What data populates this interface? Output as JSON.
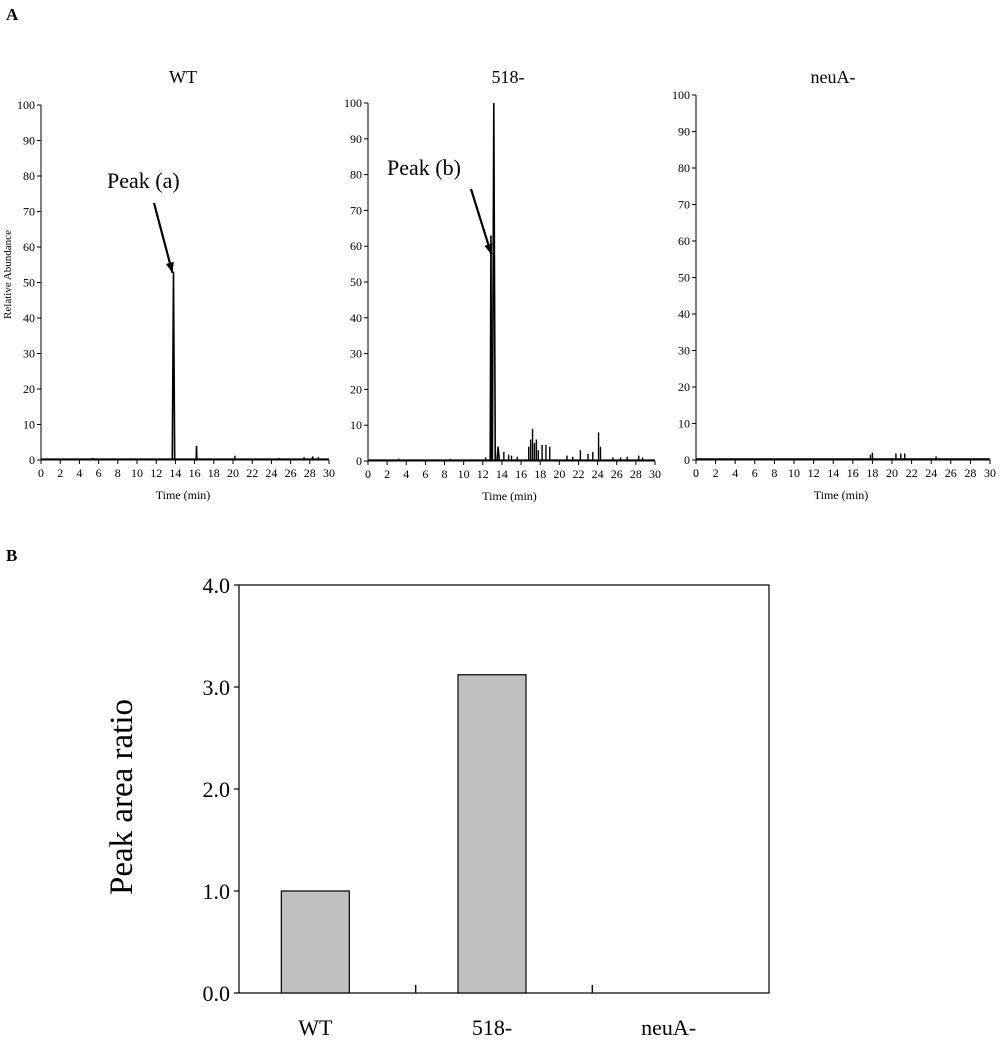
{
  "panel_labels": {
    "a": "A",
    "b": "B"
  },
  "chart_data": [
    {
      "type": "line",
      "title": "WT",
      "xlabel": "Time (min)",
      "ylabel": "Relative Abundance",
      "xlim": [
        0,
        30
      ],
      "ylim": [
        0,
        100
      ],
      "x_ticks": [
        0,
        2,
        4,
        6,
        8,
        10,
        12,
        14,
        16,
        18,
        20,
        22,
        24,
        26,
        28,
        30
      ],
      "y_ticks": [
        0,
        10,
        20,
        30,
        40,
        50,
        60,
        70,
        80,
        90,
        100
      ],
      "annotation": {
        "text": "Peak (a)",
        "x": 13.8,
        "y": 53
      },
      "peaks": [
        {
          "x": 13.8,
          "y": 53,
          "width": 0.25
        },
        {
          "x": 16.2,
          "y": 4,
          "width": 0.06
        },
        {
          "x": 28.3,
          "y": 1,
          "width": 0.06
        }
      ],
      "sticks": [
        {
          "x": 5.4,
          "y": 0.6
        },
        {
          "x": 9.4,
          "y": 0.5
        },
        {
          "x": 20.2,
          "y": 1.2
        },
        {
          "x": 24.8,
          "y": 0.6
        },
        {
          "x": 27.4,
          "y": 0.8
        },
        {
          "x": 28.9,
          "y": 0.8
        }
      ]
    },
    {
      "type": "line",
      "title": "518-",
      "xlabel": "Time (min)",
      "ylabel": "",
      "xlim": [
        0,
        30
      ],
      "ylim": [
        0,
        100
      ],
      "x_ticks": [
        0,
        2,
        4,
        6,
        8,
        10,
        12,
        14,
        16,
        18,
        20,
        22,
        24,
        26,
        28,
        30
      ],
      "y_ticks": [
        0,
        10,
        20,
        30,
        40,
        50,
        60,
        70,
        80,
        90,
        100
      ],
      "annotation": {
        "text": "Peak (b)",
        "x": 13.0,
        "y": 58
      },
      "peaks": [
        {
          "x": 13.15,
          "y": 100,
          "width": 0.3
        },
        {
          "x": 12.85,
          "y": 63,
          "width": 0.15
        },
        {
          "x": 13.6,
          "y": 4,
          "width": 0.25
        }
      ],
      "sticks": [
        {
          "x": 3.2,
          "y": 0.7
        },
        {
          "x": 8.6,
          "y": 0.6
        },
        {
          "x": 12.3,
          "y": 1.0
        },
        {
          "x": 14.2,
          "y": 2.5
        },
        {
          "x": 14.7,
          "y": 1.8
        },
        {
          "x": 15.0,
          "y": 1.5
        },
        {
          "x": 15.6,
          "y": 1.2
        },
        {
          "x": 16.8,
          "y": 4
        },
        {
          "x": 17.0,
          "y": 6
        },
        {
          "x": 17.2,
          "y": 9
        },
        {
          "x": 17.4,
          "y": 5
        },
        {
          "x": 17.6,
          "y": 6
        },
        {
          "x": 17.8,
          "y": 3
        },
        {
          "x": 18.2,
          "y": 4.5
        },
        {
          "x": 18.6,
          "y": 4.5
        },
        {
          "x": 19.0,
          "y": 4
        },
        {
          "x": 20.8,
          "y": 1.5
        },
        {
          "x": 21.4,
          "y": 1.2
        },
        {
          "x": 22.2,
          "y": 3
        },
        {
          "x": 23.0,
          "y": 2.0
        },
        {
          "x": 23.5,
          "y": 2.5
        },
        {
          "x": 24.1,
          "y": 8
        },
        {
          "x": 24.3,
          "y": 4
        },
        {
          "x": 25.6,
          "y": 1.0
        },
        {
          "x": 26.4,
          "y": 1.0
        },
        {
          "x": 27.1,
          "y": 1.2
        },
        {
          "x": 28.3,
          "y": 1.5
        },
        {
          "x": 28.7,
          "y": 1.0
        }
      ]
    },
    {
      "type": "line",
      "title": "neuA-",
      "xlabel": "Time (min)",
      "ylabel": "",
      "xlim": [
        0,
        30
      ],
      "ylim": [
        0,
        100
      ],
      "x_ticks": [
        0,
        2,
        4,
        6,
        8,
        10,
        12,
        14,
        16,
        18,
        20,
        22,
        24,
        26,
        28,
        30
      ],
      "y_ticks": [
        0,
        10,
        20,
        30,
        40,
        50,
        60,
        70,
        80,
        90,
        100
      ],
      "peaks": [],
      "sticks": [
        {
          "x": 1.4,
          "y": 0.4
        },
        {
          "x": 6.0,
          "y": 0.4
        },
        {
          "x": 17.8,
          "y": 1.5
        },
        {
          "x": 18.0,
          "y": 2.0
        },
        {
          "x": 20.4,
          "y": 1.8
        },
        {
          "x": 20.9,
          "y": 1.8
        },
        {
          "x": 21.3,
          "y": 1.8
        },
        {
          "x": 24.5,
          "y": 1.0
        },
        {
          "x": 28.6,
          "y": 0.5
        }
      ]
    },
    {
      "type": "bar",
      "title": "",
      "xlabel": "",
      "ylabel": "Peak area ratio",
      "categories": [
        "WT",
        "518-",
        "neuA-"
      ],
      "values": [
        1.0,
        3.12,
        0.0
      ],
      "ylim": [
        0,
        4
      ],
      "y_ticks": [
        0,
        1,
        2,
        3,
        4
      ],
      "y_tick_labels": [
        "0.0",
        "1.0",
        "2.0",
        "3.0",
        "4.0"
      ],
      "bar_color": "#c0c0c0",
      "grid": false
    }
  ]
}
